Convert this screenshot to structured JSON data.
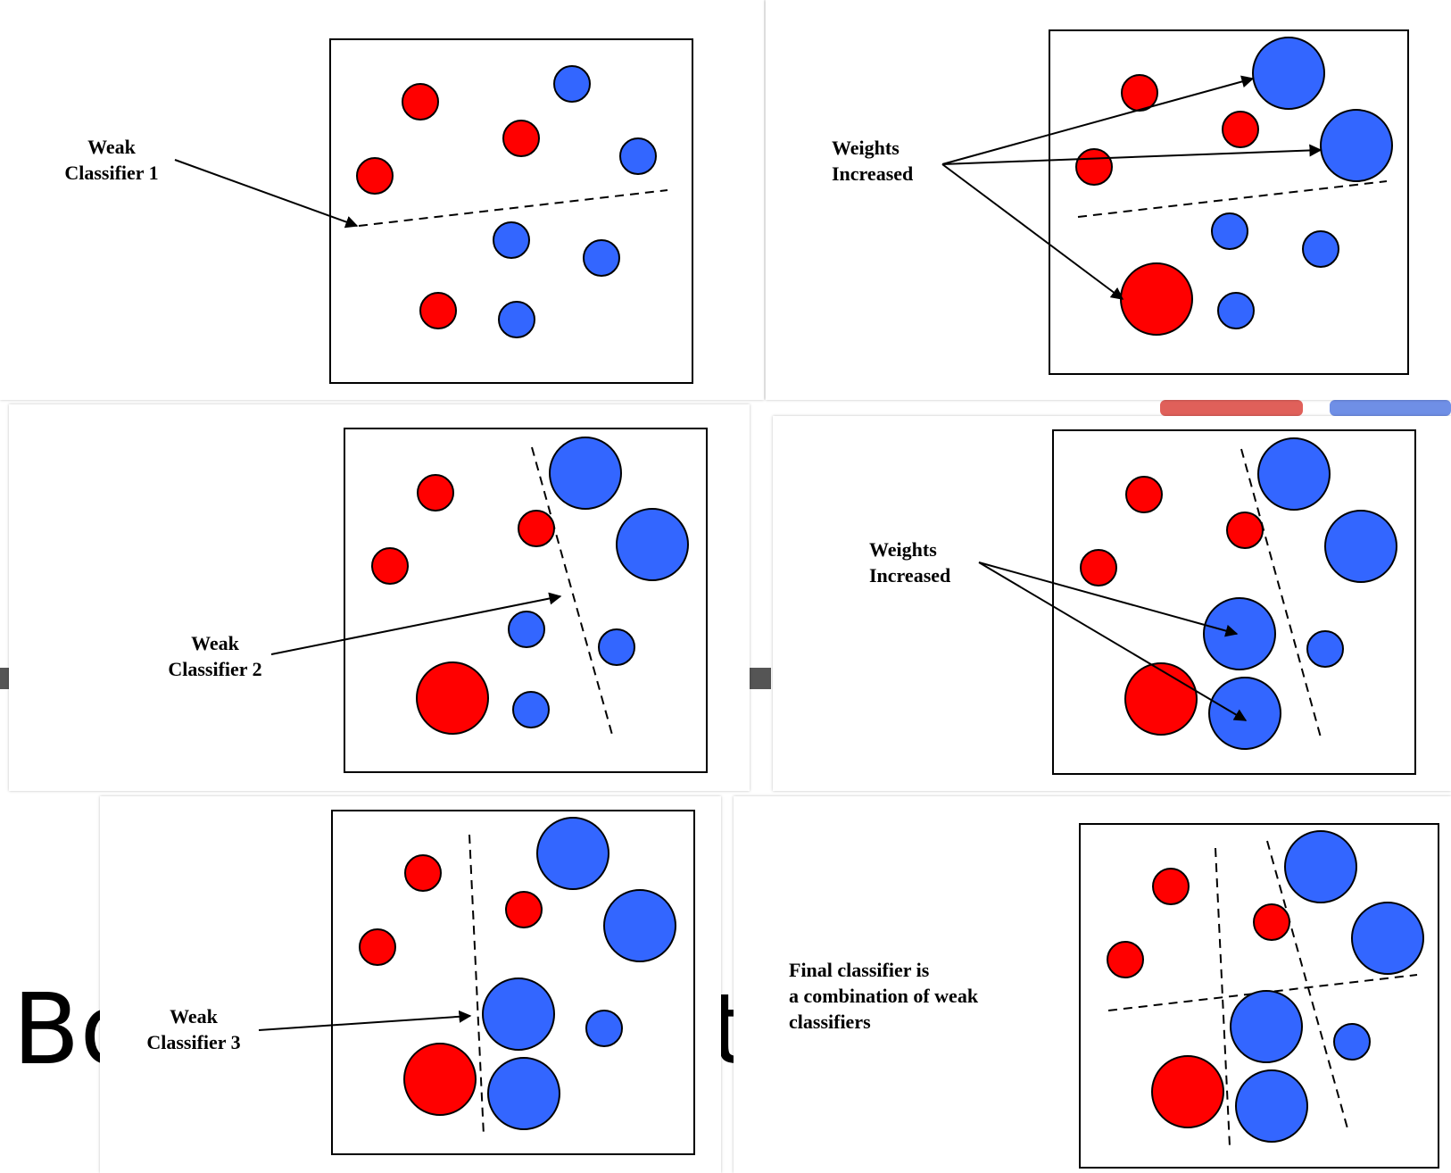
{
  "colors": {
    "red": "#ff0000",
    "blue": "#3366ff",
    "outline": "#000000",
    "background": "#ffffff"
  },
  "background_slide": {
    "partial_text_left": "Bo",
    "partial_text_right": "t"
  },
  "panels": {
    "p1": {
      "label": "Weak\nClassifier 1"
    },
    "p2": {
      "label": "Weights\nIncreased"
    },
    "p3": {
      "label": "Weak\nClassifier 2"
    },
    "p4": {
      "label": "Weights\nIncreased"
    },
    "p5": {
      "label": "Weak\nClassifier 3"
    },
    "p6": {
      "label": "Final classifier is\na combination of weak\nclassifiers"
    }
  }
}
